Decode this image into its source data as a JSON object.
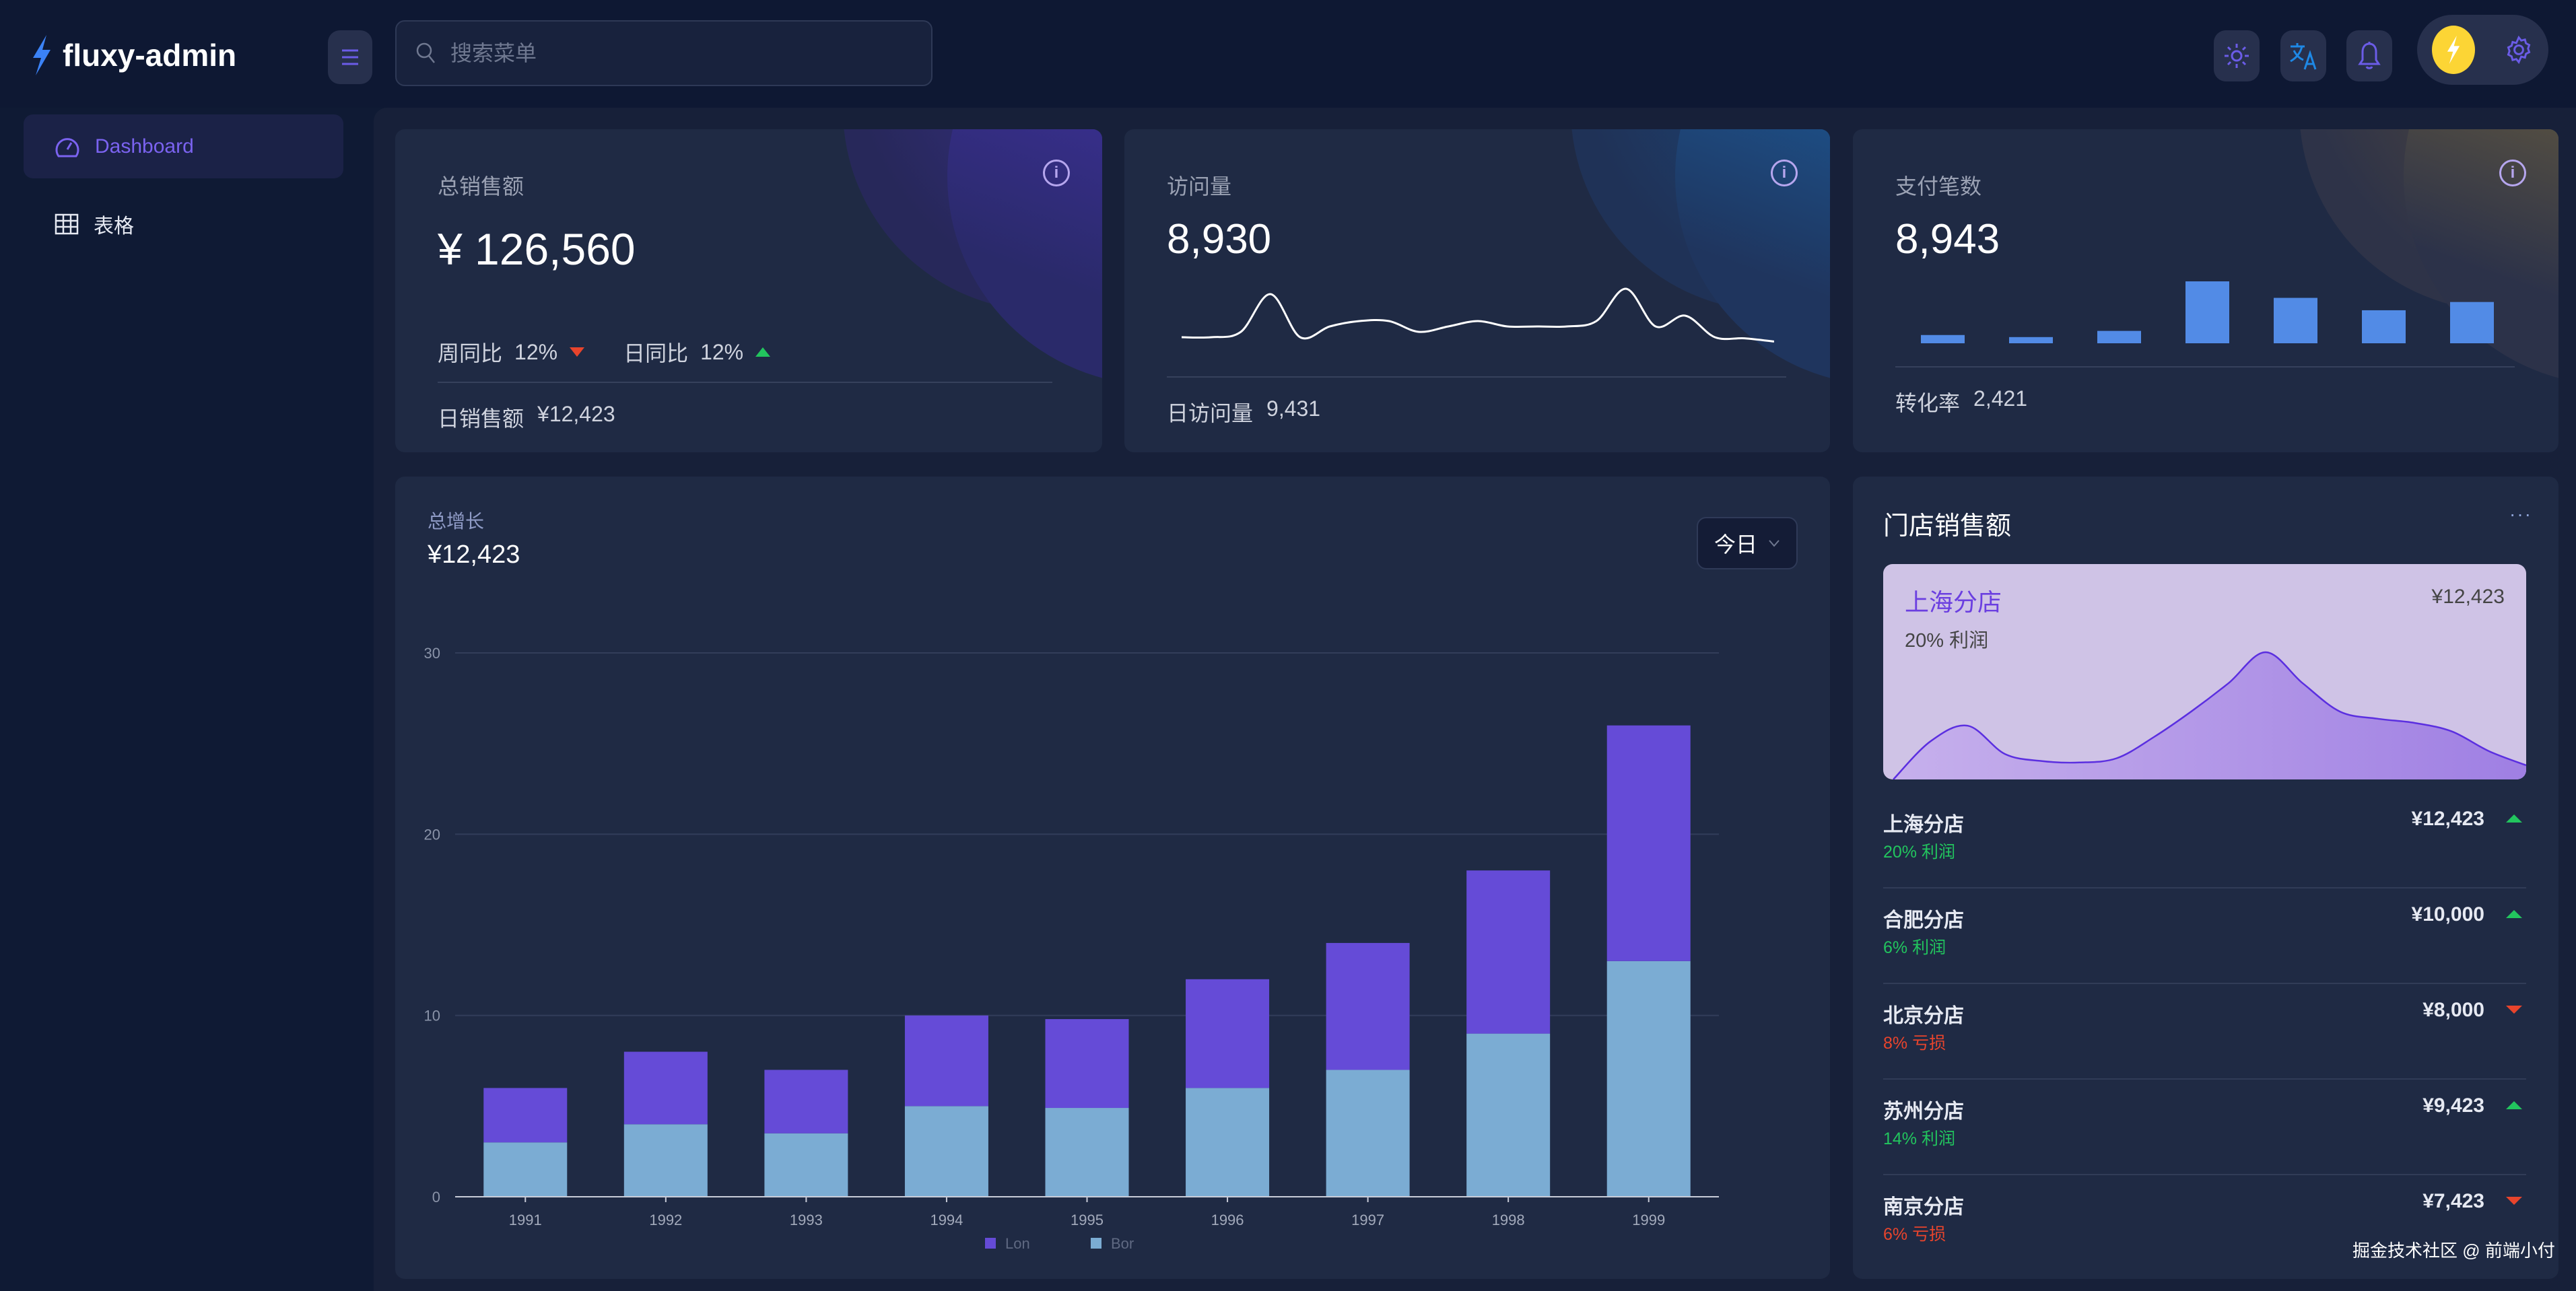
{
  "app": {
    "title": "fluxy-admin"
  },
  "header": {
    "search_placeholder": "搜索菜单",
    "icons": [
      "sun-icon",
      "translate-icon",
      "bell-icon",
      "bolt-icon",
      "gear-icon"
    ]
  },
  "sidebar": {
    "items": [
      {
        "label": "Dashboard",
        "icon": "dashboard-icon",
        "active": true
      },
      {
        "label": "表格",
        "icon": "table-icon",
        "active": false
      }
    ]
  },
  "cards": {
    "sales": {
      "title": "总销售额",
      "value": "¥ 126,560",
      "week_label": "周同比",
      "week_value": "12%",
      "day_label": "日同比",
      "day_value": "12%",
      "footer_label": "日销售额",
      "footer_value": "¥12,423"
    },
    "visits": {
      "title": "访问量",
      "value": "8,930",
      "footer_label": "日访问量",
      "footer_value": "9,431",
      "spark": [
        1,
        1,
        2,
        9,
        1,
        3,
        4,
        4,
        2,
        3,
        4,
        3,
        3,
        3,
        4,
        10,
        3,
        5,
        1,
        0.8,
        0.2
      ]
    },
    "payments": {
      "title": "支付笔数",
      "value": "8,943",
      "footer_label": "转化率",
      "footer_value": "2,421",
      "bars": [
        2,
        1.5,
        3,
        15,
        11,
        8,
        10
      ]
    }
  },
  "growth": {
    "title": "总增长",
    "value": "¥12,423",
    "select": "今日"
  },
  "chart_data": {
    "type": "bar",
    "stacked": true,
    "categories": [
      "1991",
      "1992",
      "1993",
      "1994",
      "1995",
      "1996",
      "1997",
      "1998",
      "1999"
    ],
    "series": [
      {
        "name": "Bor",
        "color": "#7bacd3",
        "values": [
          3,
          4,
          3.5,
          5,
          4.9,
          6,
          7,
          9,
          13
        ]
      },
      {
        "name": "Lon",
        "color": "#654bd7",
        "values": [
          3,
          4,
          3.5,
          5,
          4.9,
          6,
          7,
          9,
          13
        ]
      }
    ],
    "yticks": [
      "0",
      "10",
      "20",
      "30"
    ],
    "ylim": [
      0,
      30
    ],
    "grid": true,
    "legend": "bottom"
  },
  "stores": {
    "title": "门店销售额",
    "more": "···",
    "highlight": {
      "name": "上海分店",
      "value": "¥12,423",
      "profit": "20% 利润",
      "area": [
        0,
        27,
        38,
        18,
        13,
        12,
        15,
        30,
        48,
        68,
        90,
        68,
        48,
        43,
        40,
        34,
        20,
        10
      ]
    },
    "list": [
      {
        "name": "上海分店",
        "value": "¥12,423",
        "sub": "20% 利润",
        "up": true
      },
      {
        "name": "合肥分店",
        "value": "¥10,000",
        "sub": "6% 利润",
        "up": true
      },
      {
        "name": "北京分店",
        "value": "¥8,000",
        "sub": "8% 亏损",
        "up": false
      },
      {
        "name": "苏州分店",
        "value": "¥9,423",
        "sub": "14% 利润",
        "up": true
      },
      {
        "name": "南京分店",
        "value": "¥7,423",
        "sub": "6% 亏损",
        "up": false
      }
    ]
  },
  "watermark": "掘金技术社区 @ 前端小付",
  "colors": {
    "accent": "#6b4ee6",
    "up": "#22c55e",
    "down": "#e8442c",
    "bar": "#528be6"
  }
}
